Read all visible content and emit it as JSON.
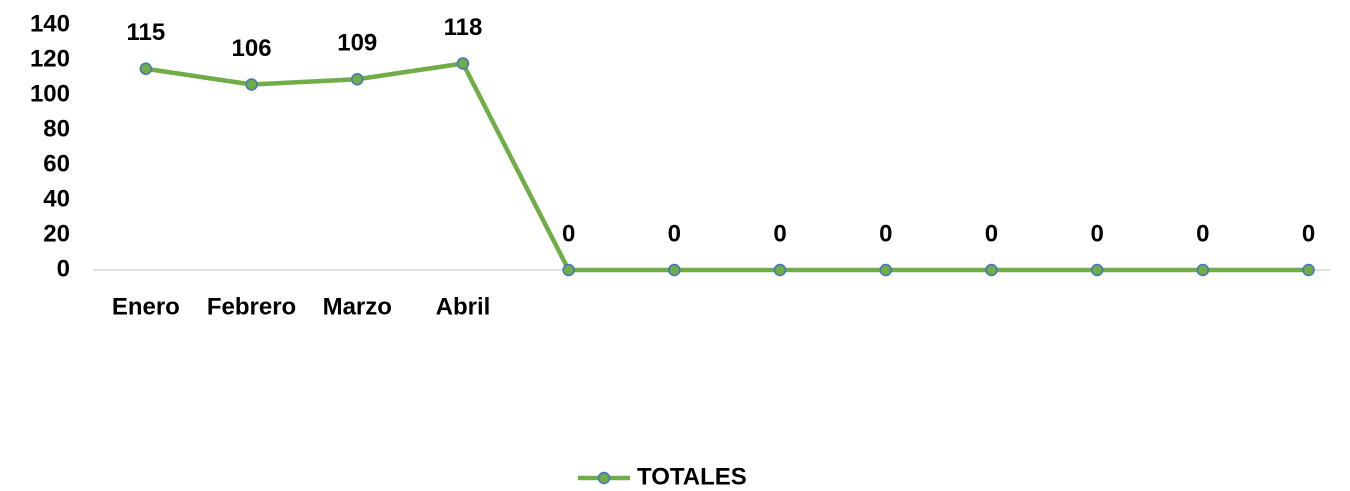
{
  "chart_data": {
    "type": "line",
    "categories": [
      "Enero",
      "Febrero",
      "Marzo",
      "Abril",
      null,
      null,
      null,
      null,
      null,
      null,
      null,
      null
    ],
    "series": [
      {
        "name": "TOTALES",
        "color": "#70ad47",
        "marker_edge": "#4472c4",
        "values": [
          115,
          106,
          109,
          118,
          0,
          0,
          0,
          0,
          0,
          0,
          0,
          0
        ]
      }
    ],
    "ylim": [
      0,
      140
    ],
    "yticks": [
      0,
      20,
      40,
      60,
      80,
      100,
      120,
      140
    ],
    "grid": false,
    "legend": "bottom"
  }
}
